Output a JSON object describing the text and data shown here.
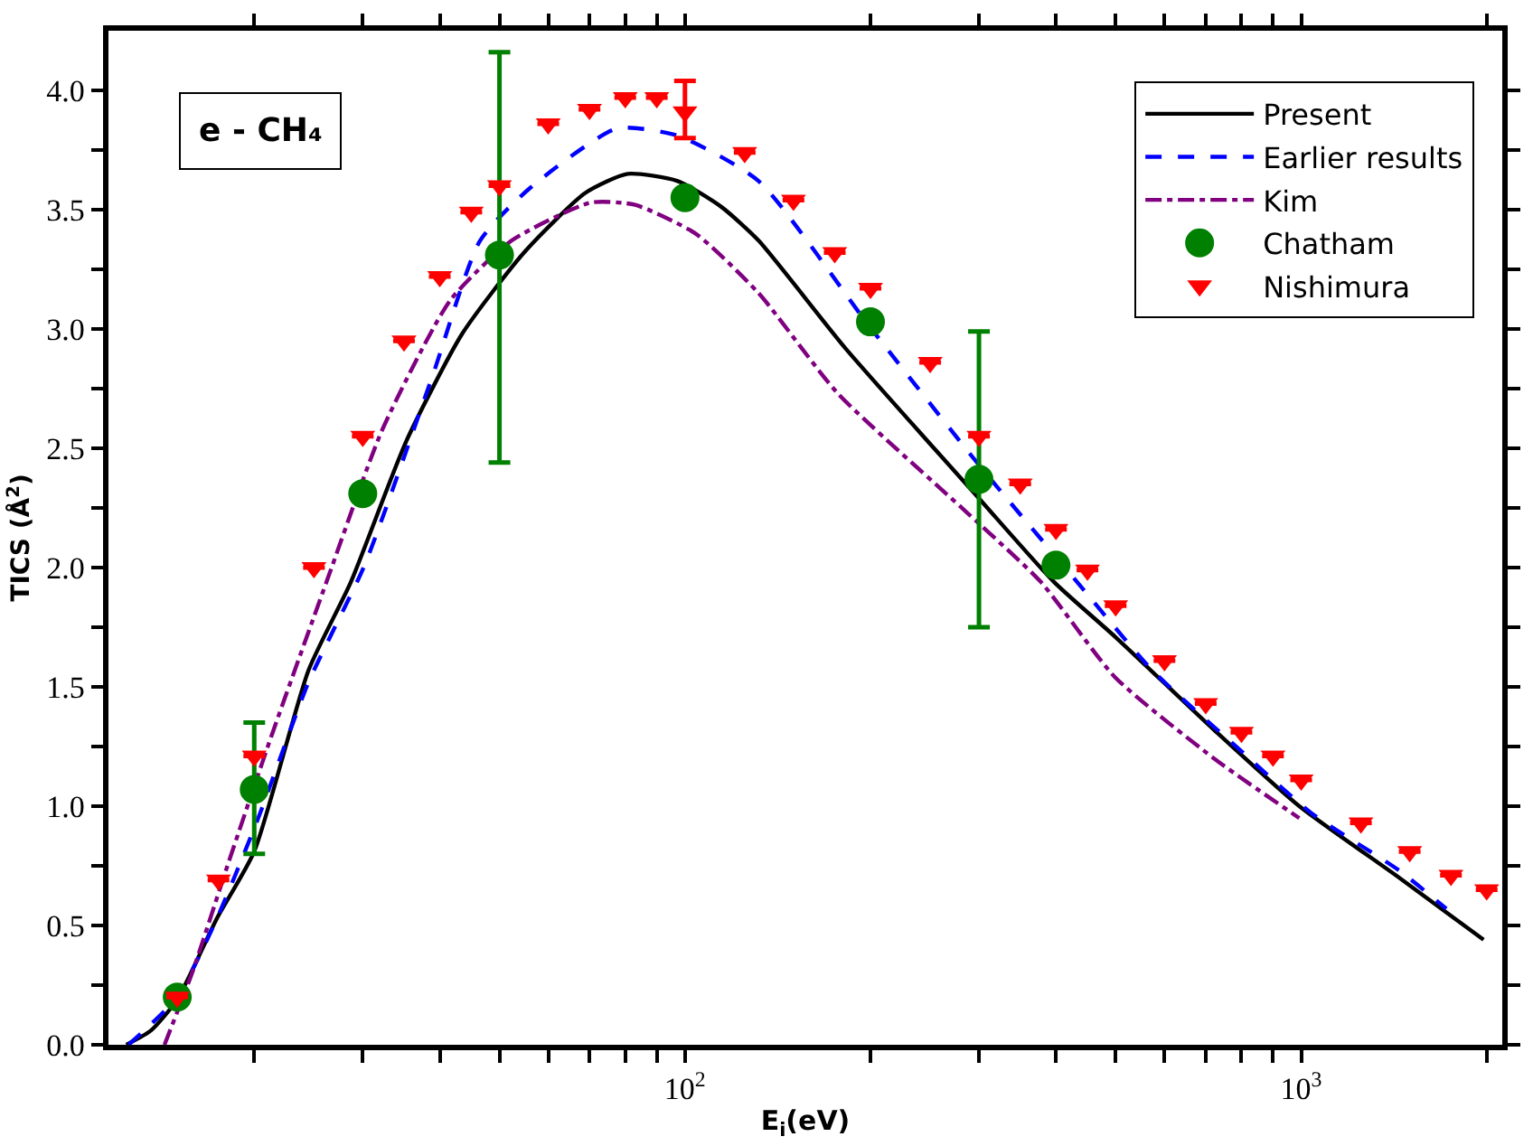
{
  "chart_data": {
    "type": "line",
    "xlabel": "E$_{i}$(eV)",
    "ylabel": "TICS (Å$^{2}$)",
    "annotations": [
      "e - CH₄"
    ],
    "log": "x",
    "grid": false,
    "legend": "top right",
    "xlim": [
      11.6,
      2120
    ],
    "xticks": [
      {
        "value": 20,
        "label": null
      },
      {
        "value": 30,
        "label": null
      },
      {
        "value": 40,
        "label": null
      },
      {
        "value": 50,
        "label": null
      },
      {
        "value": 60,
        "label": null
      },
      {
        "value": 70,
        "label": null
      },
      {
        "value": 80,
        "label": null
      },
      {
        "value": 90,
        "label": null
      },
      {
        "value": 100,
        "label": "10$^{2}$"
      },
      {
        "value": 200,
        "label": null
      },
      {
        "value": 300,
        "label": null
      },
      {
        "value": 400,
        "label": null
      },
      {
        "value": 500,
        "label": null
      },
      {
        "value": 600,
        "label": null
      },
      {
        "value": 700,
        "label": null
      },
      {
        "value": 800,
        "label": null
      },
      {
        "value": 900,
        "label": null
      },
      {
        "value": 1000,
        "label": "10$^{3}$"
      },
      {
        "value": 2000,
        "label": null
      }
    ],
    "ylim": [
      0,
      4.25
    ],
    "yticks": [
      {
        "value": 0,
        "label": "0.0"
      },
      {
        "value": 0.25,
        "label": null
      },
      {
        "value": 0.5,
        "label": "0.5"
      },
      {
        "value": 0.75,
        "label": null
      },
      {
        "value": 1,
        "label": "1.0"
      },
      {
        "value": 1.25,
        "label": null
      },
      {
        "value": 1.5,
        "label": "1.5"
      },
      {
        "value": 1.75,
        "label": null
      },
      {
        "value": 2,
        "label": "2.0"
      },
      {
        "value": 2.25,
        "label": null
      },
      {
        "value": 2.5,
        "label": "2.5"
      },
      {
        "value": 2.75,
        "label": null
      },
      {
        "value": 3,
        "label": "3.0"
      },
      {
        "value": 3.25,
        "label": null
      },
      {
        "value": 3.5,
        "label": "3.5"
      },
      {
        "value": 3.75,
        "label": null
      },
      {
        "value": 4,
        "label": "4.0"
      }
    ],
    "series": [
      {
        "name": "Present",
        "color": "#000000",
        "line_style": "solid",
        "marker": "none",
        "x": [
          12.4,
          13.6,
          15,
          17.4,
          20,
          24.5,
          28.7,
          35.3,
          43.5,
          54.8,
          68.9,
          80.7,
          97.3,
          114.8,
          131.7,
          182,
          300,
          397,
          499,
          722,
          993,
          1443,
          1977
        ],
        "values": [
          0,
          0.06,
          0.19,
          0.53,
          0.81,
          1.57,
          1.94,
          2.53,
          2.98,
          3.32,
          3.57,
          3.65,
          3.62,
          3.51,
          3.37,
          2.92,
          2.29,
          1.94,
          1.71,
          1.32,
          1.0,
          0.7,
          0.44
        ]
      },
      {
        "name": "Earlier results",
        "color": "#0000ff",
        "line_style": "dashed",
        "marker": "none",
        "x": [
          12.5,
          15,
          17.4,
          20.3,
          24.5,
          30.2,
          38.9,
          46.5,
          56,
          77.5,
          97.3,
          131.7,
          198,
          300,
          417,
          573,
          808,
          1040,
          1443,
          1720
        ],
        "values": [
          0,
          0.2,
          0.53,
          0.95,
          1.52,
          2.01,
          2.8,
          3.37,
          3.59,
          3.84,
          3.81,
          3.62,
          3.02,
          2.43,
          1.99,
          1.57,
          1.22,
          0.97,
          0.73,
          0.57
        ]
      },
      {
        "name": "Kim",
        "color": "#800080",
        "line_style": "dashdot",
        "marker": "none",
        "x": [
          14.3,
          15.9,
          18.2,
          21.3,
          26.2,
          32.3,
          41.6,
          52.3,
          70.4,
          83,
          104,
          131.7,
          177,
          287,
          378,
          499,
          722,
          993
        ],
        "values": [
          0,
          0.31,
          0.77,
          1.29,
          1.94,
          2.58,
          3.12,
          3.37,
          3.53,
          3.52,
          3.4,
          3.15,
          2.73,
          2.23,
          1.94,
          1.54,
          1.2,
          0.95
        ]
      },
      {
        "name": "Chatham",
        "type": "scatter",
        "color": "#008000",
        "marker": "circle",
        "x": [
          15,
          20,
          30,
          50,
          100,
          200,
          300,
          400
        ],
        "values": [
          0.2,
          1.07,
          2.31,
          3.31,
          3.55,
          3.03,
          2.37,
          2.01
        ],
        "errors": [
          null,
          [
            0.8,
            1.35
          ],
          null,
          [
            2.44,
            4.16
          ],
          null,
          null,
          [
            1.75,
            2.99
          ],
          null
        ]
      },
      {
        "name": "Nishimura",
        "type": "scatter",
        "color": "#ff0000",
        "marker": "triangle",
        "x": [
          15,
          17.5,
          20,
          25,
          30,
          35,
          40,
          45,
          50,
          60,
          70,
          80,
          90,
          100,
          125,
          150,
          175,
          200,
          250,
          300,
          350,
          400,
          450,
          500,
          600,
          700,
          800,
          900,
          1000,
          1250,
          1500,
          1750,
          2000
        ],
        "values": [
          0.2,
          0.69,
          1.21,
          2.0,
          2.55,
          2.95,
          3.22,
          3.49,
          3.6,
          3.86,
          3.92,
          3.97,
          3.97,
          3.91,
          3.74,
          3.54,
          3.32,
          3.17,
          2.86,
          2.55,
          2.35,
          2.16,
          1.99,
          1.84,
          1.61,
          1.43,
          1.31,
          1.21,
          1.11,
          0.93,
          0.81,
          0.71,
          0.65
        ],
        "errors": [
          null,
          null,
          null,
          null,
          null,
          null,
          null,
          null,
          null,
          null,
          null,
          null,
          null,
          [
            3.8,
            4.04
          ],
          null,
          null,
          null,
          null,
          null,
          null,
          null,
          null,
          null,
          null,
          null,
          null,
          null,
          null,
          null,
          null,
          null,
          null,
          null
        ]
      }
    ]
  }
}
